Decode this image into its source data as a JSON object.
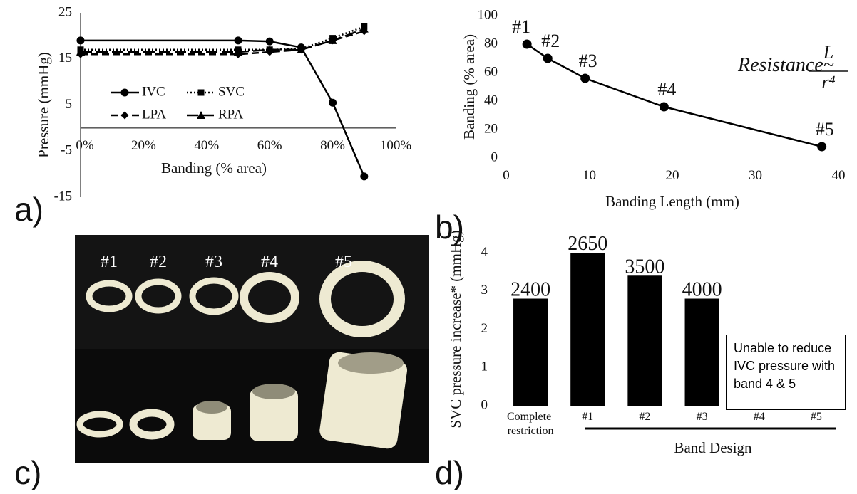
{
  "chart_data": [
    {
      "type": "line",
      "xlabel": "Banding (% area)",
      "ylabel": "Pressure (mmHg)",
      "x": [
        0,
        50,
        60,
        70,
        80,
        90
      ],
      "xlim": [
        0,
        100
      ],
      "xticks": [
        {
          "value": 0,
          "label": "0%"
        },
        {
          "value": 20,
          "label": "20%"
        },
        {
          "value": 40,
          "label": "40%"
        },
        {
          "value": 60,
          "label": "60%"
        },
        {
          "value": 80,
          "label": "80%"
        },
        {
          "value": 100,
          "label": "100%"
        }
      ],
      "ylim": [
        -15,
        25
      ],
      "yticks": [
        -15,
        -5,
        5,
        15,
        25
      ],
      "series": [
        {
          "name": "IVC",
          "color": "#000000",
          "marker": "circle",
          "dash": "solid",
          "values": [
            19,
            19,
            18.8,
            17.5,
            5.5,
            -10.5
          ]
        },
        {
          "name": "SVC",
          "color": "#000000",
          "marker": "square",
          "dash": "dotted",
          "values": [
            17,
            17,
            17,
            17.2,
            19.5,
            22
          ]
        },
        {
          "name": "LPA",
          "color": "#000000",
          "marker": "diamond",
          "dash": "dashed",
          "values": [
            16,
            16,
            16.5,
            17,
            19,
            21
          ]
        },
        {
          "name": "RPA",
          "color": "#000000",
          "marker": "triangle",
          "dash": "longdash",
          "values": [
            16.5,
            16.5,
            17,
            17,
            19,
            21.5
          ]
        }
      ]
    },
    {
      "type": "scatter",
      "xlabel": "Banding Length (mm)",
      "ylabel": "Banding (% area)",
      "x": [
        2.5,
        5,
        9.5,
        19,
        38
      ],
      "values": [
        80,
        70,
        56,
        36,
        8
      ],
      "point_labels": [
        "#1",
        "#2",
        "#3",
        "#4",
        "#5"
      ],
      "color": "#000000",
      "xlim": [
        0,
        40
      ],
      "xticks": [
        0,
        10,
        20,
        30,
        40
      ],
      "ylim": [
        0,
        100
      ],
      "yticks": [
        0,
        20,
        40,
        60,
        80,
        100
      ],
      "annotation": {
        "text": "Resistance~",
        "numerator": "L",
        "denominator": "r⁴"
      }
    },
    {
      "type": "bar",
      "xlabel": "Band Design",
      "ylabel": "SVC pressure increase* (mmHg)",
      "categories": [
        "Complete restriction",
        "#1",
        "#2",
        "#3",
        "#4",
        "#5"
      ],
      "values": [
        2.8,
        4,
        3.4,
        2.8,
        null,
        null
      ],
      "color": "#000000",
      "bar_annotations": [
        "2400",
        "2650",
        "3500",
        "4000"
      ],
      "ylim": [
        0,
        4
      ],
      "yticks": [
        0,
        1,
        2,
        3,
        4
      ],
      "note": "Unable to reduce IVC pressure with band 4 & 5"
    }
  ],
  "photo": {
    "labels": [
      "#1",
      "#2",
      "#3",
      "#4",
      "#5"
    ]
  },
  "panels": [
    "a)",
    "b)",
    "c)",
    "d)"
  ]
}
